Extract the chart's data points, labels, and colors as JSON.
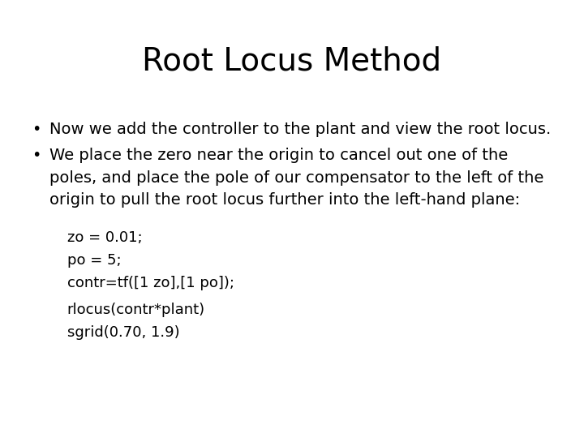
{
  "title": "Root Locus Method",
  "title_fontsize": 28,
  "background_color": "#ffffff",
  "text_color": "#000000",
  "bullet1": "Now we add the controller to the plant and view the root locus.",
  "bullet2_line1": "We place the zero near the origin to cancel out one of the",
  "bullet2_line2": "poles, and place the pole of our compensator to the left of the",
  "bullet2_line3": "origin to pull the root locus further into the left-hand plane:",
  "bullet_fontsize": 14,
  "code_block1": [
    "zo = 0.01;",
    "po = 5;",
    "contr=tf([1 zo],[1 po]);"
  ],
  "code_block2": [
    "rlocus(contr*plant)",
    "sgrid(0.70, 1.9)"
  ],
  "code_fontsize": 13
}
